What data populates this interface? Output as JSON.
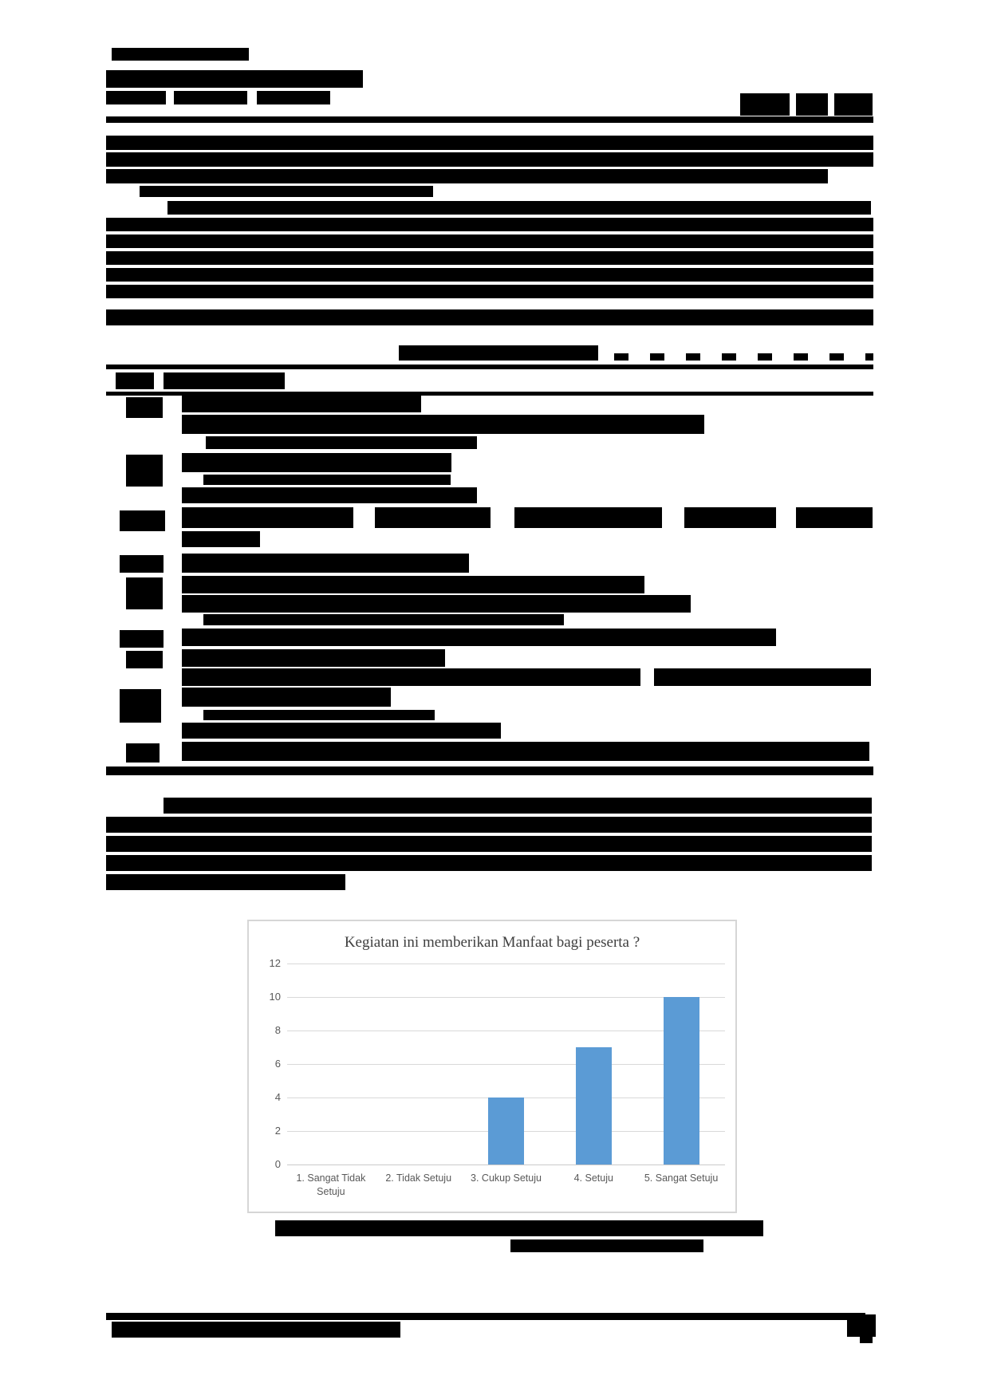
{
  "figure": {
    "caption_visible": false
  },
  "chart_data": {
    "type": "bar",
    "title": "Kegiatan ini memberikan Manfaat bagi peserta ?",
    "categories": [
      "1. Sangat Tidak Setuju",
      "2. Tidak Setuju",
      "3. Cukup Setuju",
      "4. Setuju",
      "5. Sangat Setuju"
    ],
    "values": [
      0,
      0,
      4,
      7,
      10
    ],
    "xlabel": "",
    "ylabel": "",
    "ylim": [
      0,
      12
    ],
    "yticks": [
      0,
      2,
      4,
      6,
      8,
      10,
      12
    ],
    "grid": true,
    "legend_position": "none",
    "bar_color": "#5b9bd5",
    "gridline_color": "#d9d9d9",
    "tick_label_color": "#595959",
    "title_color": "#3f3f3f"
  }
}
